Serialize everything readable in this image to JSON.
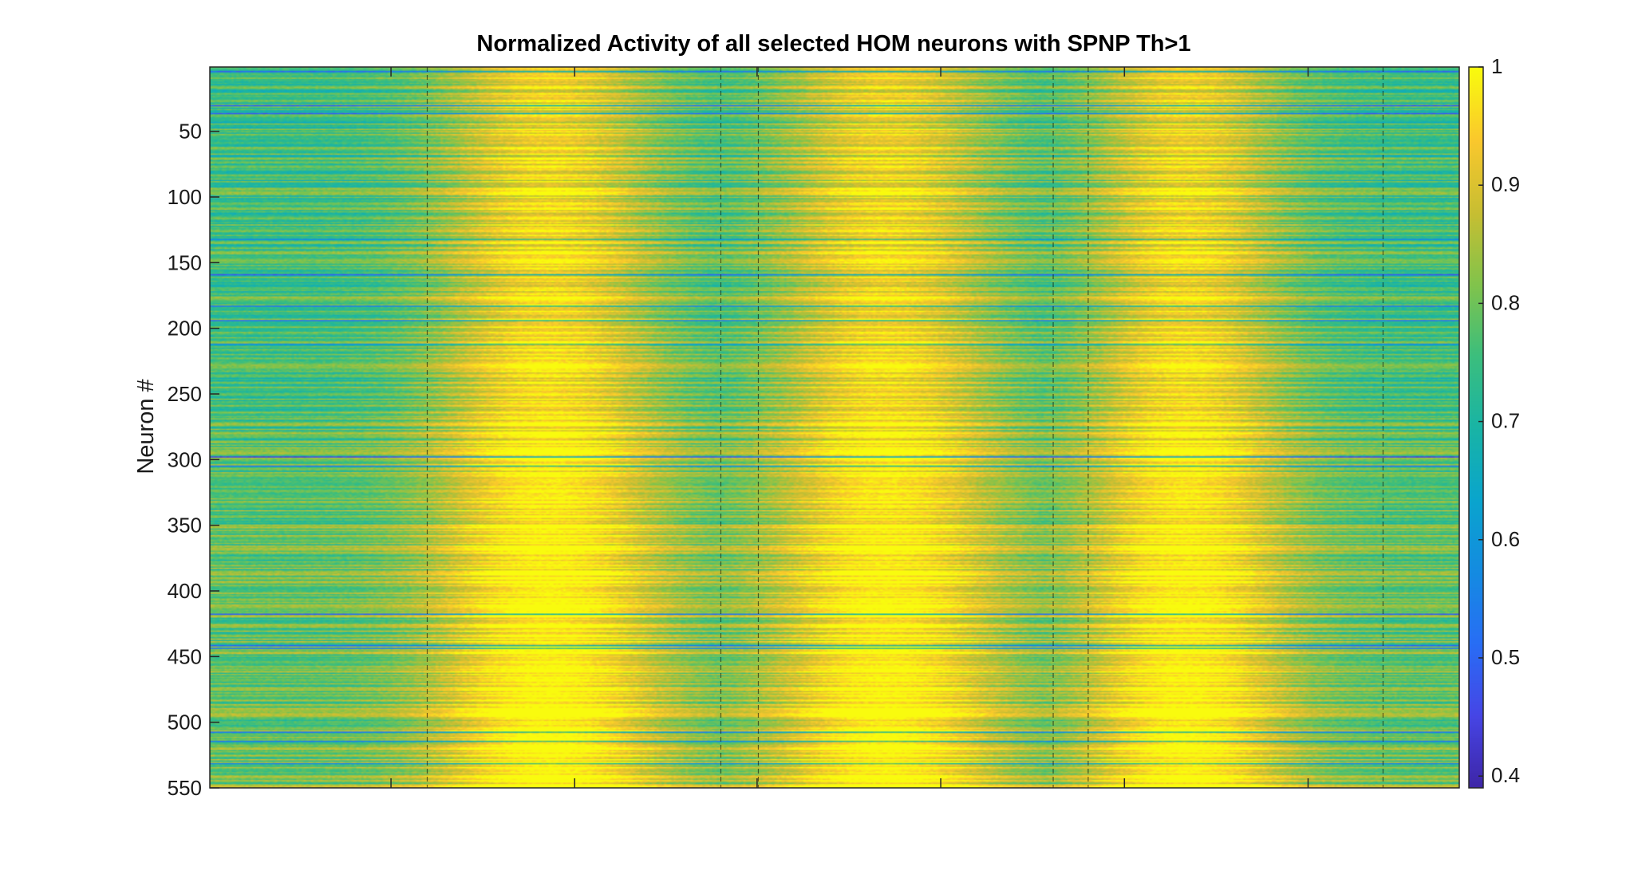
{
  "chart_data": {
    "type": "heatmap",
    "title": "Normalized Activity of all selected HOM neurons with SPNP Th>1",
    "xlabel": "",
    "ylabel": "Neuron #",
    "y_range": [
      1,
      550
    ],
    "y_ticks": [
      50,
      100,
      150,
      200,
      250,
      300,
      350,
      400,
      450,
      500,
      550
    ],
    "colorbar": {
      "colormap": "parula",
      "range": [
        0.39,
        1
      ],
      "ticks": [
        0.4,
        0.5,
        0.6,
        0.7,
        0.8,
        0.9,
        1
      ],
      "tick_labels": [
        "0.4",
        "0.5",
        "0.6",
        "0.7",
        "0.8",
        "0.9",
        "1"
      ]
    },
    "activity_peaks": [
      {
        "center_fraction": 0.27,
        "width_fraction": 0.09,
        "value": 0.98
      },
      {
        "center_fraction": 0.54,
        "width_fraction": 0.09,
        "value": 0.97
      },
      {
        "center_fraction": 0.78,
        "width_fraction": 0.08,
        "value": 0.97
      }
    ],
    "baseline_value": 0.74,
    "grid": true,
    "legend": "none"
  },
  "colors": {
    "low": "#3e26a8",
    "mid": "#16b0a0",
    "high": "#f9fb0e",
    "grid": "#000000"
  }
}
